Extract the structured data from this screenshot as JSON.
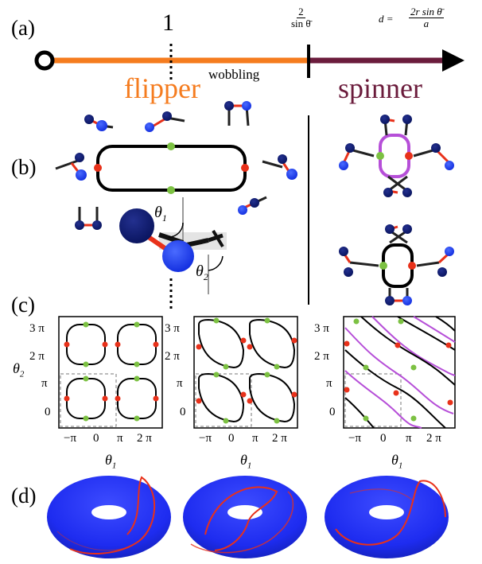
{
  "panel_labels": {
    "a": "(a)",
    "b": "(b)",
    "c": "(c)",
    "d": "(d)"
  },
  "axis_a": {
    "tick_one": "1",
    "tick_frac_num": "2",
    "tick_frac_den": "sin θ̄",
    "d_label": "d =",
    "d_num": "2r sin θ̄",
    "d_den": "a",
    "wobbling": "wobbling",
    "flipper": "flipper",
    "spinner": "spinner"
  },
  "angles": {
    "theta1": "θ",
    "theta1_sub": "1",
    "theta2": "θ",
    "theta2_sub": "2"
  },
  "plots": [
    {
      "ylabel": "θ",
      "ylabel_sub": "2",
      "xlabel": "θ",
      "xlabel_sub": "1",
      "yticks": [
        "3 π",
        "2 π",
        "π",
        "0"
      ],
      "xticks": [
        "−π",
        "0",
        "π",
        "2 π"
      ]
    },
    {
      "ylabel": "",
      "ylabel_sub": "",
      "xlabel": "θ",
      "xlabel_sub": "1",
      "yticks": [
        "3 π",
        "2 π",
        "π",
        "0"
      ],
      "xticks": [
        "−π",
        "0",
        "π",
        "2 π"
      ]
    },
    {
      "ylabel": "",
      "ylabel_sub": "",
      "xlabel": "θ",
      "xlabel_sub": "1",
      "yticks": [
        "3 π",
        "2 π",
        "π",
        "0"
      ],
      "xticks": [
        "−π",
        "0",
        "π",
        "2 π"
      ]
    }
  ],
  "colors": {
    "flipper": "#f57c1f",
    "spinner": "#6b1c3c",
    "red": "#e8311a",
    "green": "#7cc142",
    "purple": "#b64fd8",
    "torus": "#1e2cf0",
    "dark_blue": "#0b1a7a",
    "blue": "#2a4bff"
  }
}
